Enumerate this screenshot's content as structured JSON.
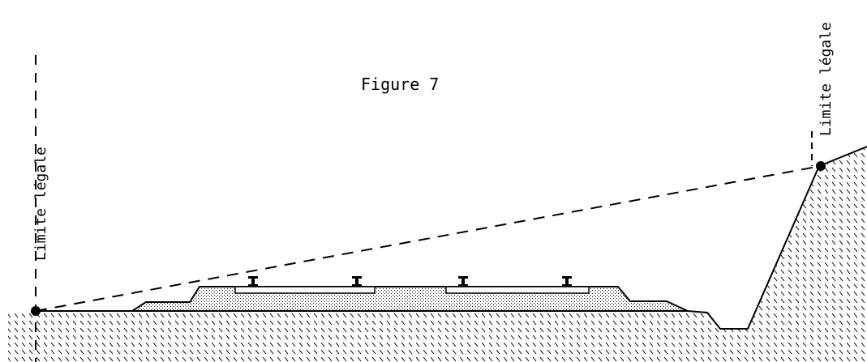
{
  "figure": {
    "title": "Figure 7",
    "left_label": "Limite légale",
    "right_label": "Limite légale"
  },
  "colors": {
    "line": "#000000",
    "background": "#ffffff"
  }
}
